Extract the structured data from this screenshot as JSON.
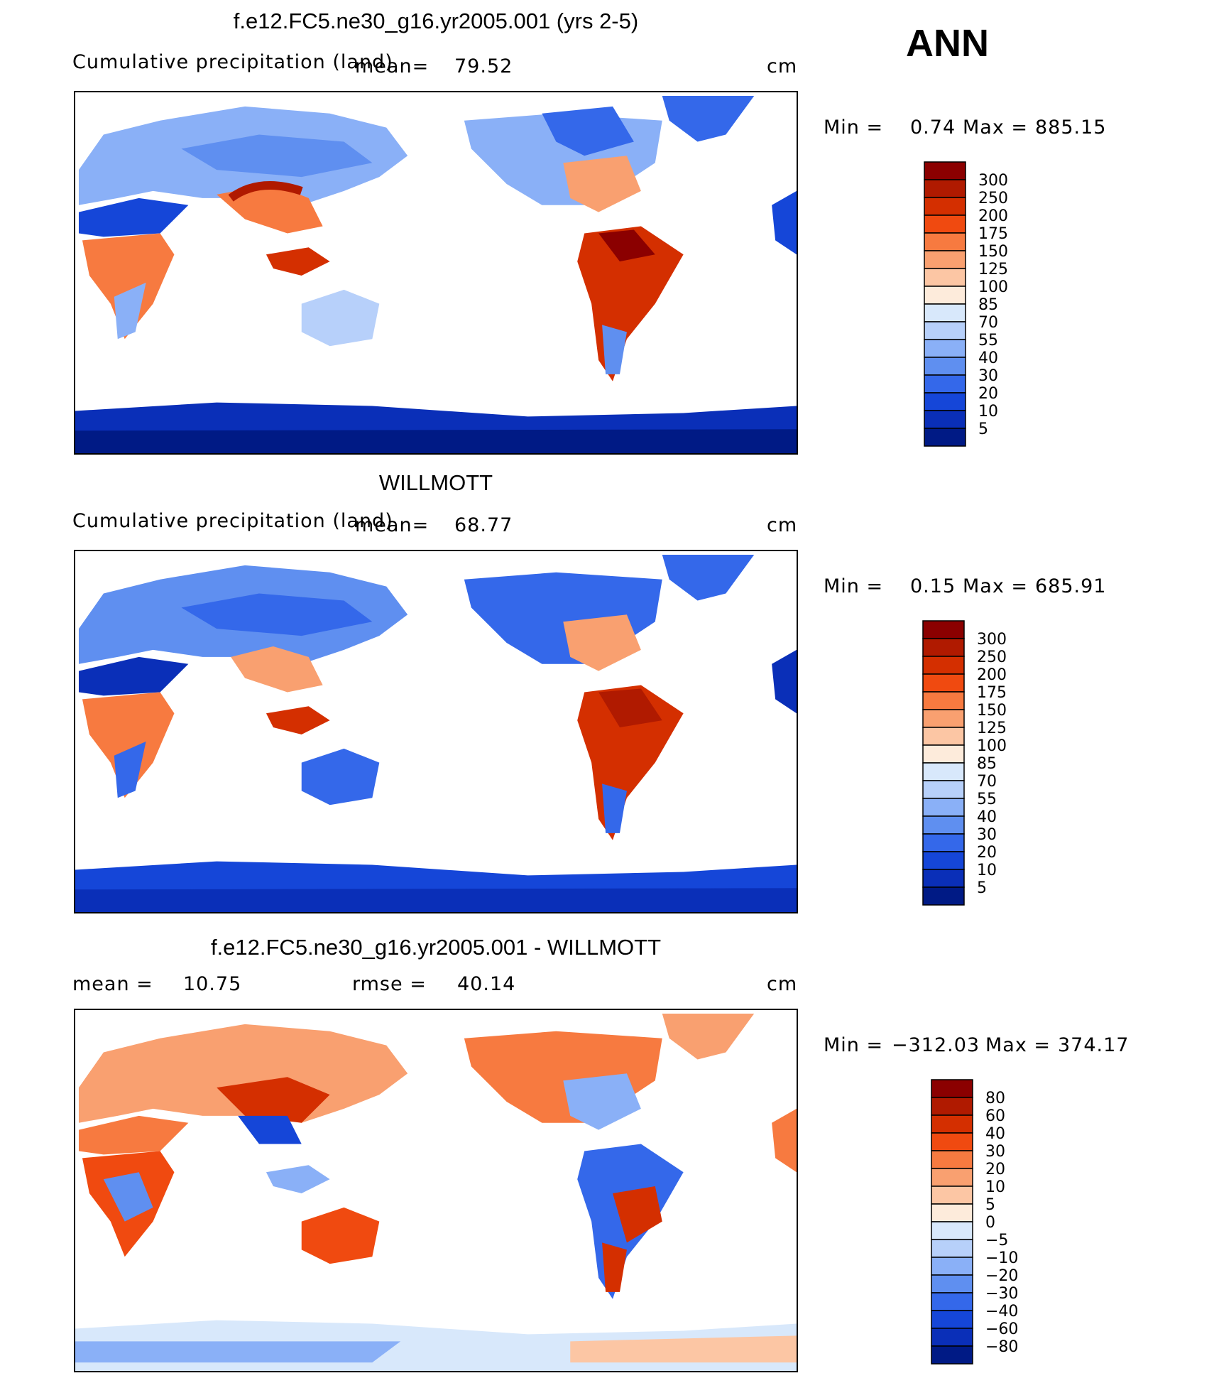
{
  "header": {
    "season": "ANN"
  },
  "panels": [
    {
      "title": "f.e12.FC5.ne30_g16.yr2005.001 (yrs 2-5)",
      "left_label": "Cumulative precipitation (land)",
      "mean_label": "mean=",
      "mean_value": "79.52",
      "units": "cm",
      "minmax": {
        "min_label": "Min =",
        "min": "0.74",
        "max_label": "Max =",
        "max": "885.15"
      },
      "colorbar": {
        "labels": [
          "300",
          "250",
          "200",
          "175",
          "150",
          "125",
          "100",
          "85",
          "70",
          "55",
          "40",
          "30",
          "20",
          "10",
          "5"
        ],
        "colors": [
          "#8b0000",
          "#b01a00",
          "#d42f00",
          "#f04a10",
          "#f77a40",
          "#f9a070",
          "#fcc6a4",
          "#fdebdb",
          "#d8e8fb",
          "#b7d0fa",
          "#8ab0f7",
          "#5f8ff0",
          "#3468ea",
          "#1546d8",
          "#0a2fb8",
          "#001a85"
        ]
      }
    },
    {
      "title": "WILLMOTT",
      "left_label": "Cumulative precipitation (land)",
      "mean_label": "mean=",
      "mean_value": "68.77",
      "units": "cm",
      "minmax": {
        "min_label": "Min =",
        "min": "0.15",
        "max_label": "Max =",
        "max": "685.91"
      },
      "colorbar": {
        "labels": [
          "300",
          "250",
          "200",
          "175",
          "150",
          "125",
          "100",
          "85",
          "70",
          "55",
          "40",
          "30",
          "20",
          "10",
          "5"
        ],
        "colors": [
          "#8b0000",
          "#b01a00",
          "#d42f00",
          "#f04a10",
          "#f77a40",
          "#f9a070",
          "#fcc6a4",
          "#fdebdb",
          "#d8e8fb",
          "#b7d0fa",
          "#8ab0f7",
          "#5f8ff0",
          "#3468ea",
          "#1546d8",
          "#0a2fb8",
          "#001a85"
        ]
      }
    },
    {
      "title": "f.e12.FC5.ne30_g16.yr2005.001 - WILLMOTT",
      "left_label": "mean =",
      "left_value": "10.75",
      "mean_label": "rmse =",
      "mean_value": "40.14",
      "units": "cm",
      "minmax": {
        "min_label": "Min =",
        "min": "−312.03",
        "max_label": "Max =",
        "max": "374.17"
      },
      "colorbar": {
        "labels": [
          "80",
          "60",
          "40",
          "30",
          "20",
          "10",
          "5",
          "0",
          "−5",
          "−10",
          "−20",
          "−30",
          "−40",
          "−60",
          "−80"
        ],
        "colors": [
          "#8b0000",
          "#b01a00",
          "#d42f00",
          "#f04a10",
          "#f77a40",
          "#f9a070",
          "#fcc6a4",
          "#fdebdb",
          "#d8e8fb",
          "#b7d0fa",
          "#8ab0f7",
          "#5f8ff0",
          "#3468ea",
          "#1546d8",
          "#0a2fb8",
          "#001a85"
        ]
      }
    }
  ],
  "chart_data": [
    {
      "type": "heatmap",
      "title": "f.e12.FC5.ne30_g16.yr2005.001 (yrs 2-5)",
      "variable": "Cumulative precipitation (land)",
      "units": "cm",
      "mean": 79.52,
      "min": 0.74,
      "max": 885.15,
      "levels": [
        5,
        10,
        20,
        30,
        40,
        55,
        70,
        85,
        100,
        125,
        150,
        175,
        200,
        250,
        300
      ]
    },
    {
      "type": "heatmap",
      "title": "WILLMOTT",
      "variable": "Cumulative precipitation (land)",
      "units": "cm",
      "mean": 68.77,
      "min": 0.15,
      "max": 685.91,
      "levels": [
        5,
        10,
        20,
        30,
        40,
        55,
        70,
        85,
        100,
        125,
        150,
        175,
        200,
        250,
        300
      ]
    },
    {
      "type": "heatmap",
      "title": "f.e12.FC5.ne30_g16.yr2005.001 - WILLMOTT",
      "units": "cm",
      "mean": 10.75,
      "rmse": 40.14,
      "min": -312.03,
      "max": 374.17,
      "levels": [
        -80,
        -60,
        -40,
        -30,
        -20,
        -10,
        -5,
        0,
        5,
        10,
        20,
        30,
        40,
        60,
        80
      ]
    }
  ]
}
